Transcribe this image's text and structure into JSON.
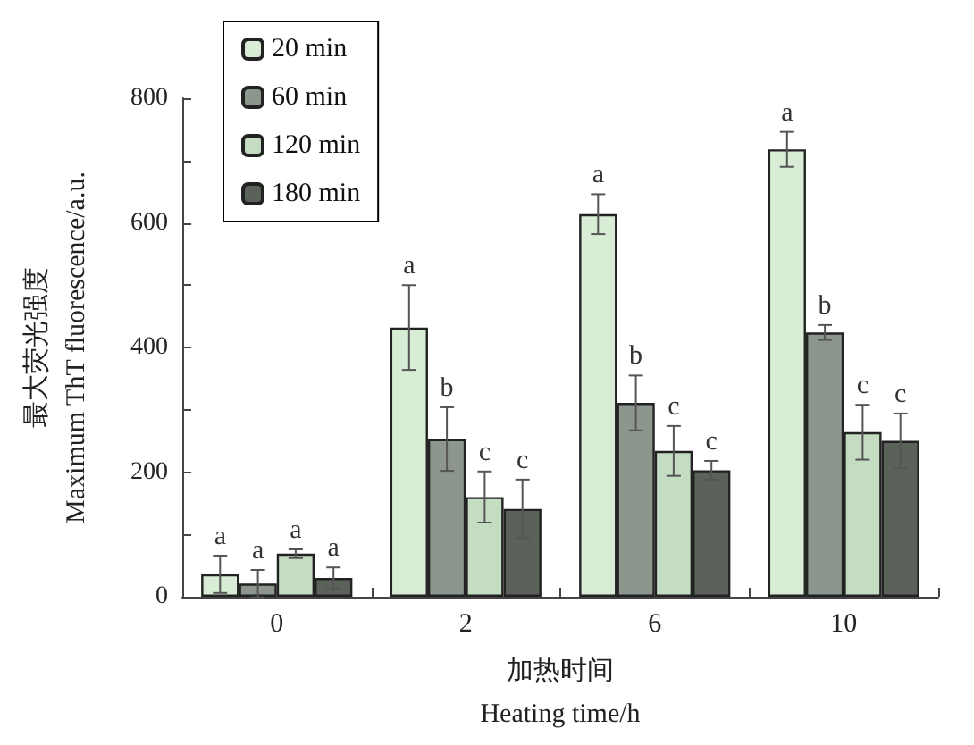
{
  "chart_data": {
    "type": "bar",
    "xlabel": "加热时间\nHeating time/h",
    "ylabel": "最大荧光强度\nMaximum ThT fluorescence/a.u.",
    "categories": [
      "0",
      "2",
      "6",
      "10"
    ],
    "series": [
      {
        "name": "20 min",
        "color": "#d8ecd6",
        "values": [
          36,
          432,
          614,
          718
        ],
        "errors": [
          30,
          68,
          32,
          28
        ],
        "value_labels": [
          "a",
          "a",
          "a",
          "a"
        ]
      },
      {
        "name": "60 min",
        "color": "#8c968c",
        "values": [
          21,
          253,
          311,
          424
        ],
        "errors": [
          22,
          51,
          44,
          12
        ],
        "value_labels": [
          "a",
          "b",
          "b",
          "b"
        ]
      },
      {
        "name": "120 min",
        "color": "#c4dcc2",
        "values": [
          69,
          160,
          234,
          264
        ],
        "errors": [
          7,
          41,
          40,
          44
        ],
        "value_labels": [
          "a",
          "c",
          "c",
          "c"
        ]
      },
      {
        "name": "180 min",
        "color": "#5a625a",
        "values": [
          30,
          141,
          203,
          250
        ],
        "errors": [
          17,
          47,
          15,
          44
        ],
        "value_labels": [
          "a",
          "c",
          "c",
          "c"
        ]
      }
    ],
    "ylim": [
      0,
      800
    ],
    "yticks": [
      0,
      {
        "value": 100,
        "label": null
      },
      200,
      {
        "value": 300,
        "label": null
      },
      400,
      {
        "value": 500,
        "label": null
      },
      600,
      {
        "value": 700,
        "label": null
      },
      800
    ],
    "grid": false,
    "legend": "top left"
  }
}
